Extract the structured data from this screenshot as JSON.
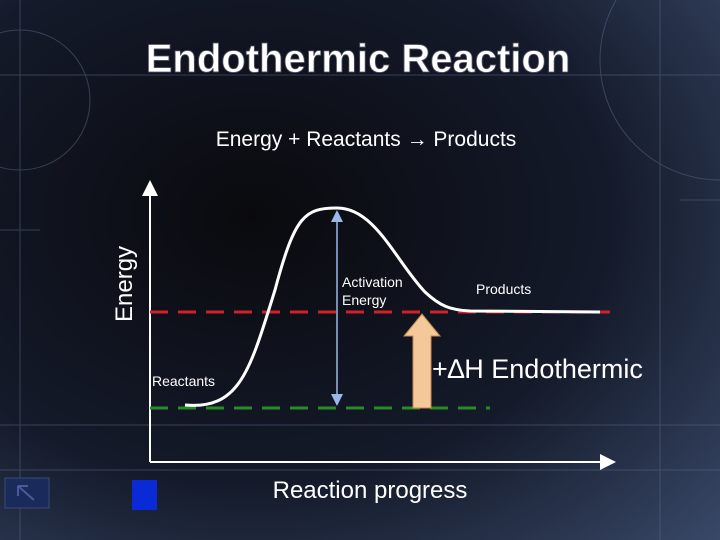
{
  "title": "Endothermic Reaction",
  "equation": "Energy  +  Reactants → Products",
  "diagram": {
    "y_axis_label": "Energy",
    "x_axis_label": "Reaction progress",
    "activation_energy_label": [
      "Activation",
      "Energy"
    ],
    "products_label": "Products",
    "reactants_label": "Reactants",
    "delta_h_label": "+∆H  Endothermic"
  }
}
